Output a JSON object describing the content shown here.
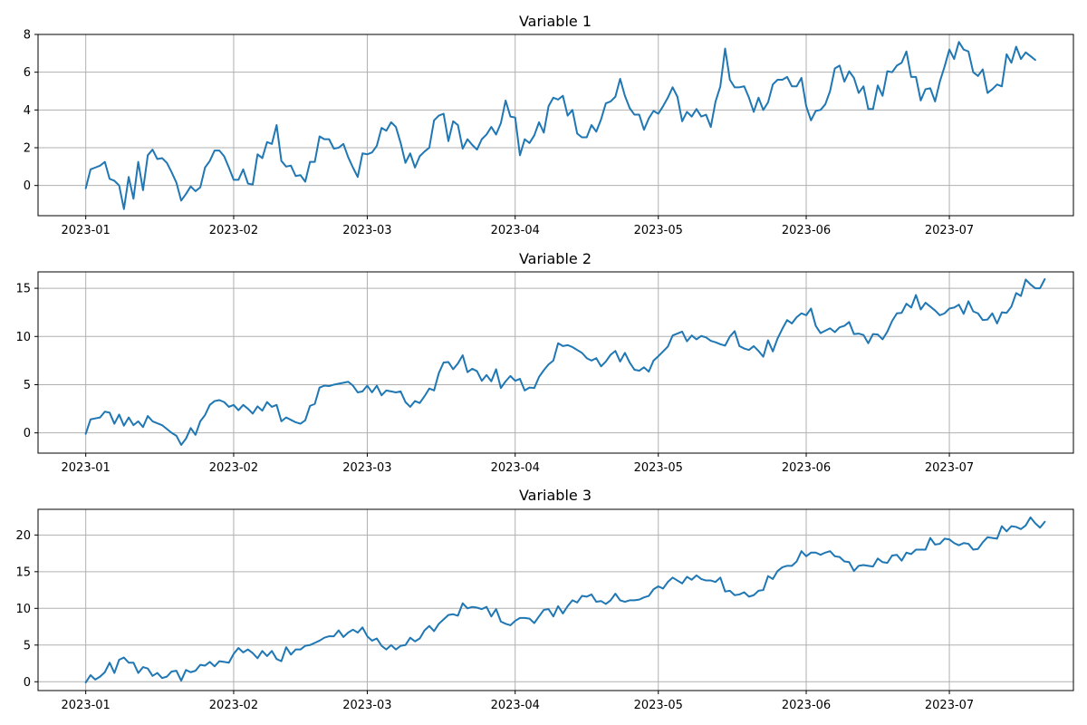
{
  "figure": {
    "x_tick_labels": [
      "2023-01",
      "2023-02",
      "2023-03",
      "2023-04",
      "2023-05",
      "2023-06",
      "2023-07"
    ],
    "line_color": "#1f77b4",
    "grid": true
  },
  "chart_data": [
    {
      "type": "line",
      "title": "Variable 1",
      "xlabel": "",
      "ylabel": "",
      "x_range": [
        "2022-12-22",
        "2023-07-27"
      ],
      "ylim": [
        -1.6,
        8.0
      ],
      "y_ticks": [
        0,
        2,
        4,
        6,
        8
      ],
      "x_start": "2023-01-01",
      "x_step": "1 day",
      "series": [
        {
          "values": [
            -0.15,
            0.85,
            0.95,
            1.05,
            1.25,
            0.35,
            0.25,
            0.0,
            -1.25,
            0.45,
            -0.7,
            1.25,
            -0.25,
            1.6,
            1.9,
            1.4,
            1.45,
            1.2,
            0.7,
            0.15,
            -0.8,
            -0.45,
            -0.05,
            -0.3,
            -0.1,
            0.95,
            1.3,
            1.85,
            1.85,
            1.55,
            0.95,
            0.3,
            0.3,
            0.85,
            0.1,
            0.05,
            1.65,
            1.45,
            2.3,
            2.2,
            3.2,
            1.3,
            1.0,
            1.05,
            0.5,
            0.55,
            0.2,
            1.25,
            1.25,
            2.6,
            2.45,
            2.45,
            1.95,
            2.0,
            2.2,
            1.5,
            0.95,
            0.45,
            1.7,
            1.65,
            1.75,
            2.1,
            3.05,
            2.9,
            3.35,
            3.1,
            2.25,
            1.2,
            1.7,
            0.95,
            1.55,
            1.8,
            2.0,
            3.45,
            3.7,
            3.8,
            2.35,
            3.4,
            3.2,
            1.95,
            2.45,
            2.15,
            1.9,
            2.45,
            2.7,
            3.1,
            2.7,
            3.3,
            4.5,
            3.65,
            3.6,
            1.6,
            2.45,
            2.25,
            2.65,
            3.35,
            2.8,
            4.2,
            4.65,
            4.55,
            4.75,
            3.7,
            4.0,
            2.75,
            2.55,
            2.55,
            3.2,
            2.85,
            3.5,
            4.35,
            4.45,
            4.7,
            5.65,
            4.75,
            4.1,
            3.75,
            3.75,
            2.95,
            3.55,
            3.95,
            3.8,
            4.2,
            4.65,
            5.2,
            4.7,
            3.4,
            3.9,
            3.65,
            4.05,
            3.65,
            3.75,
            3.1,
            4.45,
            5.25,
            7.25,
            5.6,
            5.2,
            5.2,
            5.25,
            4.65,
            3.9,
            4.65,
            4.0,
            4.4,
            5.35,
            5.6,
            5.6,
            5.75,
            5.25,
            5.25,
            5.7,
            4.2,
            3.45,
            3.95,
            4.0,
            4.3,
            5.0,
            6.2,
            6.35,
            5.5,
            6.05,
            5.7,
            4.9,
            5.25,
            4.05,
            4.05,
            5.3,
            4.75,
            6.05,
            6.0,
            6.35,
            6.5,
            7.1,
            5.75,
            5.75,
            4.5,
            5.1,
            5.15,
            4.45,
            5.5,
            6.3,
            7.2,
            6.7,
            7.6,
            7.2,
            7.1,
            6.0,
            5.8,
            6.15,
            4.9,
            5.1,
            5.35,
            5.25,
            6.95,
            6.5,
            7.35,
            6.7,
            7.05,
            6.85,
            6.65
          ]
        }
      ]
    },
    {
      "type": "line",
      "title": "Variable 2",
      "xlabel": "",
      "ylabel": "",
      "x_range": [
        "2022-12-22",
        "2023-07-27"
      ],
      "ylim": [
        -2.1,
        16.7
      ],
      "y_ticks": [
        0,
        5,
        10,
        15
      ],
      "x_start": "2023-01-01",
      "x_step": "1 day",
      "series": [
        {
          "values": [
            -0.1,
            1.4,
            1.5,
            1.6,
            2.2,
            2.1,
            0.95,
            1.9,
            0.75,
            1.6,
            0.8,
            1.2,
            0.6,
            1.75,
            1.2,
            1.0,
            0.8,
            0.4,
            0.0,
            -0.3,
            -1.25,
            -0.6,
            0.5,
            -0.2,
            1.2,
            1.85,
            2.9,
            3.3,
            3.4,
            3.2,
            2.7,
            2.9,
            2.35,
            2.9,
            2.5,
            2.0,
            2.75,
            2.3,
            3.2,
            2.7,
            2.9,
            1.2,
            1.6,
            1.35,
            1.1,
            0.95,
            1.3,
            2.8,
            3.0,
            4.7,
            4.9,
            4.85,
            5.0,
            5.1,
            5.2,
            5.3,
            4.9,
            4.2,
            4.3,
            4.9,
            4.2,
            4.9,
            3.9,
            4.4,
            4.3,
            4.2,
            4.3,
            3.2,
            2.7,
            3.3,
            3.1,
            3.8,
            4.6,
            4.4,
            6.2,
            7.3,
            7.35,
            6.6,
            7.2,
            8.05,
            6.3,
            6.65,
            6.4,
            5.4,
            6.0,
            5.35,
            6.6,
            4.65,
            5.35,
            5.9,
            5.4,
            5.6,
            4.4,
            4.7,
            4.65,
            5.8,
            6.5,
            7.1,
            7.5,
            9.3,
            9.0,
            9.1,
            8.9,
            8.6,
            8.3,
            7.75,
            7.5,
            7.75,
            6.9,
            7.4,
            8.1,
            8.5,
            7.4,
            8.3,
            7.3,
            6.55,
            6.45,
            6.8,
            6.35,
            7.5,
            7.95,
            8.45,
            8.95,
            10.1,
            10.3,
            10.5,
            9.5,
            10.1,
            9.7,
            10.05,
            9.9,
            9.55,
            9.4,
            9.2,
            9.05,
            10.0,
            10.55,
            9.0,
            8.75,
            8.6,
            9.0,
            8.5,
            7.9,
            9.6,
            8.45,
            9.8,
            10.8,
            11.7,
            11.35,
            12.0,
            12.4,
            12.2,
            12.9,
            11.1,
            10.35,
            10.6,
            10.85,
            10.45,
            10.95,
            11.1,
            11.5,
            10.25,
            10.3,
            10.15,
            9.3,
            10.25,
            10.2,
            9.7,
            10.5,
            11.6,
            12.4,
            12.45,
            13.4,
            13.0,
            14.3,
            12.8,
            13.5,
            13.1,
            12.7,
            12.2,
            12.4,
            12.9,
            13.0,
            13.3,
            12.35,
            13.65,
            12.6,
            12.4,
            11.7,
            11.75,
            12.4,
            11.35,
            12.5,
            12.45,
            13.1,
            14.5,
            14.2,
            15.9,
            15.4,
            15.0,
            15.0,
            15.95
          ]
        }
      ]
    },
    {
      "type": "line",
      "title": "Variable 3",
      "xlabel": "",
      "ylabel": "",
      "x_range": [
        "2022-12-22",
        "2023-07-27"
      ],
      "ylim": [
        -1.2,
        23.5
      ],
      "y_ticks": [
        0,
        5,
        10,
        15,
        20
      ],
      "x_start": "2023-01-01",
      "x_step": "1 day",
      "series": [
        {
          "values": [
            -0.1,
            0.9,
            0.3,
            0.7,
            1.3,
            2.6,
            1.2,
            3.0,
            3.3,
            2.6,
            2.6,
            1.2,
            2.0,
            1.8,
            0.8,
            1.2,
            0.5,
            0.7,
            1.4,
            1.5,
            0.15,
            1.6,
            1.3,
            1.5,
            2.3,
            2.2,
            2.7,
            2.1,
            2.8,
            2.7,
            2.6,
            3.8,
            4.6,
            4.0,
            4.4,
            3.9,
            3.2,
            4.2,
            3.5,
            4.2,
            3.1,
            2.8,
            4.7,
            3.7,
            4.4,
            4.4,
            4.9,
            5.0,
            5.3,
            5.6,
            6.0,
            6.2,
            6.2,
            7.0,
            6.1,
            6.7,
            7.1,
            6.7,
            7.4,
            6.2,
            5.6,
            5.9,
            4.9,
            4.4,
            5.0,
            4.4,
            4.9,
            5.0,
            6.0,
            5.5,
            5.9,
            7.0,
            7.6,
            6.9,
            7.9,
            8.5,
            9.1,
            9.2,
            9.0,
            10.7,
            10.0,
            10.2,
            10.1,
            9.9,
            10.2,
            8.9,
            9.9,
            8.2,
            7.9,
            7.7,
            8.3,
            8.7,
            8.7,
            8.6,
            8.0,
            8.9,
            9.8,
            9.9,
            8.9,
            10.3,
            9.3,
            10.3,
            11.1,
            10.8,
            11.7,
            11.6,
            11.9,
            10.9,
            11.0,
            10.6,
            11.1,
            12.0,
            11.1,
            10.9,
            11.1,
            11.1,
            11.2,
            11.5,
            11.7,
            12.6,
            13.0,
            12.7,
            13.6,
            14.2,
            13.8,
            13.4,
            14.3,
            13.9,
            14.5,
            14.0,
            13.8,
            13.8,
            13.6,
            14.2,
            12.3,
            12.4,
            11.8,
            11.9,
            12.2,
            11.6,
            11.8,
            12.4,
            12.5,
            14.4,
            14.0,
            15.1,
            15.6,
            15.8,
            15.8,
            16.4,
            17.8,
            17.1,
            17.6,
            17.6,
            17.3,
            17.6,
            17.8,
            17.1,
            17.0,
            16.4,
            16.3,
            15.1,
            15.8,
            15.9,
            15.8,
            15.7,
            16.8,
            16.3,
            16.2,
            17.2,
            17.3,
            16.5,
            17.6,
            17.4,
            18.0,
            18.0,
            18.0,
            19.6,
            18.7,
            18.8,
            19.5,
            19.4,
            18.9,
            18.6,
            18.9,
            18.8,
            18.0,
            18.1,
            19.0,
            19.7,
            19.6,
            19.5,
            21.2,
            20.5,
            21.2,
            21.1,
            20.8,
            21.3,
            22.4,
            21.6,
            21.0,
            21.8
          ]
        }
      ]
    }
  ]
}
